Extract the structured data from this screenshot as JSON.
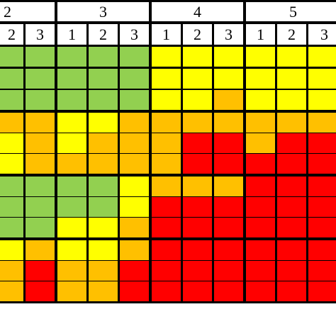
{
  "header": {
    "groups": [
      "2",
      "3",
      "4",
      "5"
    ],
    "subcolumns": [
      [
        "2",
        "3"
      ],
      [
        "1",
        "2",
        "3"
      ],
      [
        "1",
        "2",
        "3"
      ],
      [
        "1",
        "2",
        "3"
      ]
    ]
  },
  "grid": {
    "rows": [
      [
        "#92d050",
        "#92d050",
        "#92d050",
        "#92d050",
        "#92d050",
        "#ffff00",
        "#ffff00",
        "#ffff00",
        "#ffff00",
        "#ffff00",
        "#ffff00"
      ],
      [
        "#92d050",
        "#92d050",
        "#92d050",
        "#92d050",
        "#92d050",
        "#ffff00",
        "#ffff00",
        "#ffff00",
        "#ffff00",
        "#ffff00",
        "#ffff00"
      ],
      [
        "#92d050",
        "#92d050",
        "#92d050",
        "#92d050",
        "#92d050",
        "#ffff00",
        "#ffff00",
        "#ffc000",
        "#ffff00",
        "#ffff00",
        "#ffff00"
      ],
      [
        "#ffc000",
        "#ffc000",
        "#ffff00",
        "#ffff00",
        "#ffc000",
        "#ffc000",
        "#ffc000",
        "#ffc000",
        "#ffc000",
        "#ffc000",
        "#ffc000"
      ],
      [
        "#ffff00",
        "#ffc000",
        "#ffff00",
        "#ffc000",
        "#ffc000",
        "#ffc000",
        "#ff0000",
        "#ff0000",
        "#ffc000",
        "#ff0000",
        "#ff0000"
      ],
      [
        "#ffff00",
        "#ffc000",
        "#ffc000",
        "#ffc000",
        "#ffc000",
        "#ffc000",
        "#ff0000",
        "#ff0000",
        "#ff0000",
        "#ff0000",
        "#ff0000"
      ],
      [
        "#92d050",
        "#92d050",
        "#92d050",
        "#92d050",
        "#ffff00",
        "#ffc000",
        "#ffc000",
        "#ffc000",
        "#ff0000",
        "#ff0000",
        "#ff0000"
      ],
      [
        "#92d050",
        "#92d050",
        "#92d050",
        "#92d050",
        "#ffff00",
        "#ff0000",
        "#ff0000",
        "#ff0000",
        "#ff0000",
        "#ff0000",
        "#ff0000"
      ],
      [
        "#92d050",
        "#92d050",
        "#ffff00",
        "#ffff00",
        "#ffc000",
        "#ff0000",
        "#ff0000",
        "#ff0000",
        "#ff0000",
        "#ff0000",
        "#ff0000"
      ],
      [
        "#ffff00",
        "#ffc000",
        "#ffff00",
        "#ffff00",
        "#ffc000",
        "#ff0000",
        "#ff0000",
        "#ff0000",
        "#ff0000",
        "#ff0000",
        "#ff0000"
      ],
      [
        "#ffc000",
        "#ff0000",
        "#ffc000",
        "#ffc000",
        "#ff0000",
        "#ff0000",
        "#ff0000",
        "#ff0000",
        "#ff0000",
        "#ff0000",
        "#ff0000"
      ],
      [
        "#ffc000",
        "#ff0000",
        "#ffc000",
        "#ffc000",
        "#ff0000",
        "#ff0000",
        "#ff0000",
        "#ff0000",
        "#ff0000",
        "#ff0000",
        "#ff0000"
      ]
    ]
  }
}
